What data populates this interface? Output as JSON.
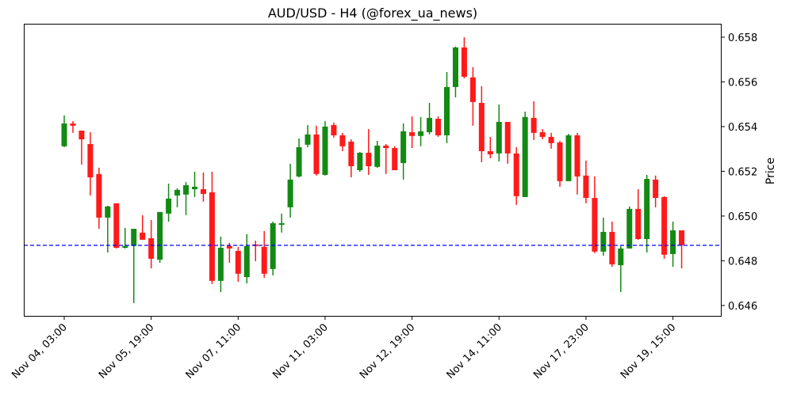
{
  "chart_data": {
    "type": "candlestick",
    "title": "AUD/USD - H4 (@forex_ua_news)",
    "xlabel": "",
    "ylabel": "Price",
    "ylim": [
      0.6455,
      0.6586
    ],
    "xlim": [
      -4.65,
      75.6
    ],
    "grid": false,
    "colors": {
      "up": "#138a13",
      "down": "#ff1a1a",
      "reference_line": "#0000ff"
    },
    "reference_line": {
      "value": 0.64869,
      "style": "dashed"
    },
    "y_ticks": [
      0.646,
      0.648,
      0.65,
      0.652,
      0.654,
      0.656,
      0.658
    ],
    "y_tick_labels": [
      "0.646",
      "0.648",
      "0.650",
      "0.652",
      "0.654",
      "0.656",
      "0.658"
    ],
    "x_ticks": [
      {
        "index": 0,
        "label": "Nov 04, 03:00"
      },
      {
        "index": 10,
        "label": "Nov 05, 19:00"
      },
      {
        "index": 20,
        "label": "Nov 07, 11:00"
      },
      {
        "index": 30,
        "label": "Nov 11, 03:00"
      },
      {
        "index": 40,
        "label": "Nov 12, 19:00"
      },
      {
        "index": 50,
        "label": "Nov 14, 11:00"
      },
      {
        "index": 60,
        "label": "Nov 17, 23:00"
      },
      {
        "index": 70,
        "label": "Nov 19, 15:00"
      }
    ],
    "ohlc": [
      [
        0.65312,
        0.6545,
        0.65308,
        0.65414
      ],
      [
        0.65414,
        0.65425,
        0.65372,
        0.65404
      ],
      [
        0.65382,
        0.65382,
        0.6523,
        0.65343
      ],
      [
        0.65322,
        0.65375,
        0.65092,
        0.65173
      ],
      [
        0.65188,
        0.65216,
        0.64943,
        0.64993
      ],
      [
        0.64993,
        0.65046,
        0.64837,
        0.65043
      ],
      [
        0.65057,
        0.65057,
        0.64855,
        0.64858
      ],
      [
        0.64858,
        0.64947,
        0.64855,
        0.64866
      ],
      [
        0.64866,
        0.64943,
        0.64611,
        0.64943
      ],
      [
        0.64926,
        0.65004,
        0.64894,
        0.64894
      ],
      [
        0.64901,
        0.64982,
        0.64766,
        0.64809
      ],
      [
        0.64805,
        0.65018,
        0.64791,
        0.65018
      ],
      [
        0.65011,
        0.65145,
        0.64975,
        0.65078
      ],
      [
        0.65092,
        0.65124,
        0.65039,
        0.65117
      ],
      [
        0.65096,
        0.65152,
        0.65004,
        0.65138
      ],
      [
        0.6512,
        0.65198,
        0.65085,
        0.65131
      ],
      [
        0.6512,
        0.65195,
        0.65064,
        0.65099
      ],
      [
        0.65106,
        0.65198,
        0.64696,
        0.6471
      ],
      [
        0.6471,
        0.64908,
        0.6466,
        0.64858
      ],
      [
        0.64866,
        0.6488,
        0.64791,
        0.64855
      ],
      [
        0.64844,
        0.64862,
        0.64706,
        0.64742
      ],
      [
        0.64727,
        0.64919,
        0.64699,
        0.64866
      ],
      [
        0.64873,
        0.6489,
        0.64798,
        0.64866
      ],
      [
        0.64862,
        0.64933,
        0.64724,
        0.64742
      ],
      [
        0.64763,
        0.64975,
        0.64735,
        0.64968
      ],
      [
        0.64961,
        0.65011,
        0.64926,
        0.64968
      ],
      [
        0.65039,
        0.65234,
        0.64993,
        0.65163
      ],
      [
        0.65177,
        0.65347,
        0.65173,
        0.65308
      ],
      [
        0.65319,
        0.65407,
        0.65308,
        0.65365
      ],
      [
        0.65365,
        0.65404,
        0.65181,
        0.65188
      ],
      [
        0.65184,
        0.65425,
        0.65181,
        0.654
      ],
      [
        0.65407,
        0.65418,
        0.65351,
        0.65361
      ],
      [
        0.65361,
        0.65372,
        0.6529,
        0.65312
      ],
      [
        0.65333,
        0.65343,
        0.65173,
        0.65223
      ],
      [
        0.65205,
        0.65287,
        0.65198,
        0.65283
      ],
      [
        0.65283,
        0.65389,
        0.65184,
        0.65223
      ],
      [
        0.6522,
        0.65336,
        0.65216,
        0.65315
      ],
      [
        0.65315,
        0.65322,
        0.65188,
        0.65304
      ],
      [
        0.65304,
        0.65312,
        0.65205,
        0.65205
      ],
      [
        0.65237,
        0.65414,
        0.65163,
        0.65379
      ],
      [
        0.65375,
        0.65446,
        0.65304,
        0.65358
      ],
      [
        0.65358,
        0.65443,
        0.65312,
        0.65379
      ],
      [
        0.65375,
        0.65506,
        0.65365,
        0.65439
      ],
      [
        0.65435,
        0.65446,
        0.65354,
        0.65361
      ],
      [
        0.65361,
        0.65644,
        0.65326,
        0.65577
      ],
      [
        0.65577,
        0.65758,
        0.65531,
        0.65754
      ],
      [
        0.65754,
        0.658,
        0.65616,
        0.65623
      ],
      [
        0.6562,
        0.65666,
        0.65404,
        0.6551
      ],
      [
        0.65506,
        0.65581,
        0.65241,
        0.6529
      ],
      [
        0.6529,
        0.65354,
        0.65258,
        0.65276
      ],
      [
        0.6528,
        0.65499,
        0.65244,
        0.65421
      ],
      [
        0.65421,
        0.65421,
        0.65234,
        0.6528
      ],
      [
        0.6528,
        0.65308,
        0.6505,
        0.65089
      ],
      [
        0.65085,
        0.65467,
        0.65085,
        0.65443
      ],
      [
        0.65439,
        0.65513,
        0.6534,
        0.65372
      ],
      [
        0.65375,
        0.65389,
        0.65343,
        0.65354
      ],
      [
        0.65354,
        0.65372,
        0.65301,
        0.65326
      ],
      [
        0.65329,
        0.65336,
        0.65131,
        0.65156
      ],
      [
        0.65156,
        0.65368,
        0.65156,
        0.65361
      ],
      [
        0.65361,
        0.65372,
        0.65096,
        0.65177
      ],
      [
        0.65181,
        0.65248,
        0.65057,
        0.65081
      ],
      [
        0.65081,
        0.65177,
        0.64834,
        0.64841
      ],
      [
        0.64841,
        0.64993,
        0.64823,
        0.64929
      ],
      [
        0.64929,
        0.64975,
        0.64773,
        0.64784
      ],
      [
        0.6478,
        0.64866,
        0.6466,
        0.64855
      ],
      [
        0.64855,
        0.65043,
        0.64855,
        0.65032
      ],
      [
        0.65032,
        0.6512,
        0.64894,
        0.64897
      ],
      [
        0.64897,
        0.65184,
        0.64837,
        0.65166
      ],
      [
        0.65163,
        0.65181,
        0.65039,
        0.65081
      ],
      [
        0.65085,
        0.65089,
        0.64809,
        0.64827
      ],
      [
        0.6483,
        0.64975,
        0.64773,
        0.64936
      ],
      [
        0.64936,
        0.64936,
        0.64766,
        0.64869
      ]
    ]
  }
}
